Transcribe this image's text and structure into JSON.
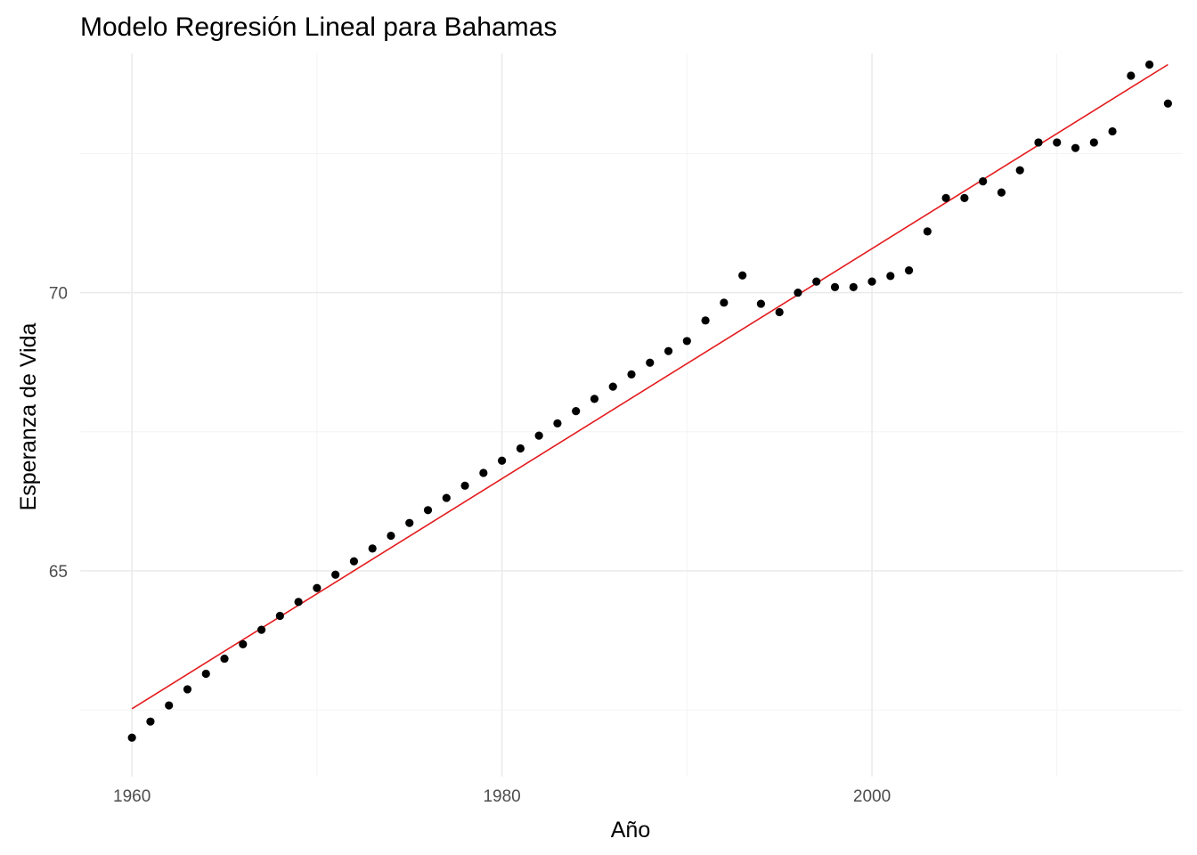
{
  "chart_data": {
    "type": "scatter",
    "title": "Modelo Regresión Lineal para Bahamas",
    "xlabel": "Año",
    "ylabel": "Esperanza de Vida",
    "xlim": [
      1957.2,
      2016.8
    ],
    "ylim": [
      61.3,
      74.3
    ],
    "x_ticks": [
      1960,
      1980,
      2000
    ],
    "y_ticks": [
      65,
      70
    ],
    "x_minor": [
      1970,
      1990,
      2010
    ],
    "y_minor": [
      62.5,
      67.5,
      72.5
    ],
    "grid": true,
    "legend": "none",
    "point_color": "#000000",
    "line_color": "#e41a1c",
    "series": [
      {
        "type": "points",
        "x": [
          1960,
          1961,
          1962,
          1963,
          1964,
          1965,
          1966,
          1967,
          1968,
          1969,
          1970,
          1971,
          1972,
          1973,
          1974,
          1975,
          1976,
          1977,
          1978,
          1979,
          1980,
          1981,
          1982,
          1983,
          1984,
          1985,
          1986,
          1987,
          1988,
          1989,
          1990,
          1991,
          1992,
          1993,
          1994,
          1995,
          1996,
          1997,
          1998,
          1999,
          2000,
          2001,
          2002,
          2003,
          2004,
          2005,
          2006,
          2007,
          2008,
          2009,
          2010,
          2011,
          2012,
          2013,
          2014,
          2015,
          2016
        ],
        "y": [
          62.0,
          62.29,
          62.58,
          62.87,
          63.15,
          63.42,
          63.68,
          63.94,
          64.19,
          64.44,
          64.69,
          64.93,
          65.17,
          65.4,
          65.63,
          65.86,
          66.09,
          66.31,
          66.53,
          66.76,
          66.98,
          67.2,
          67.43,
          67.65,
          67.87,
          68.09,
          68.31,
          68.53,
          68.74,
          68.95,
          69.13,
          69.5,
          69.82,
          70.31,
          69.8,
          69.65,
          70.0,
          70.2,
          70.1,
          70.1,
          70.2,
          70.3,
          70.4,
          71.1,
          71.7,
          71.7,
          72.0,
          71.8,
          72.2,
          72.7,
          72.7,
          72.6,
          72.7,
          72.9,
          73.9,
          74.1,
          73.4
        ]
      },
      {
        "type": "regression-line",
        "x": [
          1960,
          2016
        ],
        "y": [
          62.52,
          74.1
        ]
      }
    ]
  }
}
